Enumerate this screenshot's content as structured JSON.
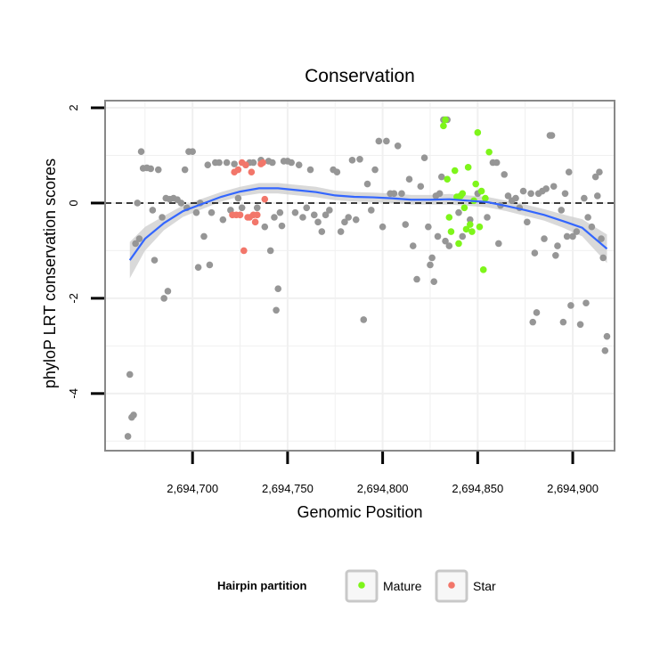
{
  "chart_data": {
    "type": "scatter",
    "title": "Conservation",
    "xlabel": "Genomic Position",
    "ylabel": "phyloP LRT conservation scores",
    "xlim": [
      2694654,
      2694922
    ],
    "ylim": [
      -5.2,
      2.15
    ],
    "x_ticks": [
      2694700,
      2694750,
      2694800,
      2694850,
      2694900
    ],
    "x_tick_labels": [
      "2,694,700",
      "2,694,750",
      "2,694,800",
      "2,694,850",
      "2,694,900"
    ],
    "y_ticks": [
      -4,
      -2,
      0,
      2
    ],
    "y_tick_labels": [
      "-4",
      "-2",
      "0",
      "2"
    ],
    "reference_line_y": 0,
    "colors": {
      "other": "#969696",
      "mature": "#7ef51a",
      "star": "#f2766a",
      "smooth": "#3366ff",
      "band": "#cccccc",
      "grid": "#f0f0f0",
      "frame": "#888888"
    },
    "legend": {
      "title": "Hairpin partition",
      "items": [
        {
          "label": "Mature",
          "color": "#7ef51a"
        },
        {
          "label": "Star",
          "color": "#f2766a"
        }
      ]
    },
    "series": [
      {
        "name": "Other",
        "points": [
          [
            2694666,
            -4.9
          ],
          [
            2694667,
            -3.6
          ],
          [
            2694668,
            -4.5
          ],
          [
            2694669,
            -4.45
          ],
          [
            2694670,
            -0.85
          ],
          [
            2694671,
            0.0
          ],
          [
            2694672,
            -0.75
          ],
          [
            2694673,
            1.08
          ],
          [
            2694674,
            0.73
          ],
          [
            2694676,
            0.74
          ],
          [
            2694678,
            0.72
          ],
          [
            2694679,
            -0.15
          ],
          [
            2694680,
            -1.2
          ],
          [
            2694682,
            0.7
          ],
          [
            2694684,
            -0.3
          ],
          [
            2694685,
            -2.0
          ],
          [
            2694686,
            0.1
          ],
          [
            2694687,
            -1.85
          ],
          [
            2694688,
            0.08
          ],
          [
            2694690,
            0.1
          ],
          [
            2694692,
            0.07
          ],
          [
            2694694,
            0.0
          ],
          [
            2694696,
            0.7
          ],
          [
            2694697,
            -0.1
          ],
          [
            2694698,
            1.08
          ],
          [
            2694700,
            1.08
          ],
          [
            2694702,
            -0.2
          ],
          [
            2694703,
            -1.35
          ],
          [
            2694704,
            0.0
          ],
          [
            2694706,
            -0.7
          ],
          [
            2694708,
            0.8
          ],
          [
            2694709,
            -1.3
          ],
          [
            2694710,
            -0.2
          ],
          [
            2694712,
            0.85
          ],
          [
            2694714,
            0.85
          ],
          [
            2694716,
            -0.35
          ],
          [
            2694718,
            0.85
          ],
          [
            2694720,
            -0.15
          ],
          [
            2694722,
            0.82
          ],
          [
            2694724,
            0.1
          ],
          [
            2694726,
            -0.1
          ],
          [
            2694728,
            0.8
          ],
          [
            2694730,
            0.85
          ],
          [
            2694732,
            0.85
          ],
          [
            2694734,
            -0.1
          ],
          [
            2694736,
            0.9
          ],
          [
            2694738,
            -0.5
          ],
          [
            2694740,
            0.88
          ],
          [
            2694741,
            -1.0
          ],
          [
            2694742,
            0.85
          ],
          [
            2694743,
            -0.3
          ],
          [
            2694744,
            -2.25
          ],
          [
            2694745,
            -1.8
          ],
          [
            2694746,
            -0.2
          ],
          [
            2694747,
            -0.48
          ],
          [
            2694748,
            0.88
          ],
          [
            2694750,
            0.88
          ],
          [
            2694752,
            0.85
          ],
          [
            2694754,
            -0.2
          ],
          [
            2694756,
            0.8
          ],
          [
            2694758,
            -0.3
          ],
          [
            2694760,
            -0.1
          ],
          [
            2694762,
            0.7
          ],
          [
            2694764,
            -0.25
          ],
          [
            2694766,
            -0.4
          ],
          [
            2694768,
            -0.6
          ],
          [
            2694770,
            -0.25
          ],
          [
            2694772,
            -0.15
          ],
          [
            2694774,
            0.7
          ],
          [
            2694776,
            0.65
          ],
          [
            2694778,
            -0.6
          ],
          [
            2694780,
            -0.4
          ],
          [
            2694782,
            -0.3
          ],
          [
            2694784,
            0.9
          ],
          [
            2694786,
            -0.35
          ],
          [
            2694788,
            0.92
          ],
          [
            2694790,
            -2.45
          ],
          [
            2694792,
            0.4
          ],
          [
            2694794,
            -0.15
          ],
          [
            2694796,
            0.7
          ],
          [
            2694798,
            1.3
          ],
          [
            2694800,
            -0.5
          ],
          [
            2694802,
            1.3
          ],
          [
            2694804,
            0.2
          ],
          [
            2694806,
            0.2
          ],
          [
            2694808,
            1.2
          ],
          [
            2694810,
            0.2
          ],
          [
            2694812,
            -0.45
          ],
          [
            2694814,
            0.5
          ],
          [
            2694816,
            -0.9
          ],
          [
            2694818,
            -1.6
          ],
          [
            2694820,
            0.35
          ],
          [
            2694822,
            0.95
          ],
          [
            2694824,
            -0.5
          ],
          [
            2694825,
            -1.3
          ],
          [
            2694826,
            -1.15
          ],
          [
            2694827,
            -1.65
          ],
          [
            2694828,
            0.15
          ],
          [
            2694829,
            -0.7
          ],
          [
            2694830,
            0.2
          ],
          [
            2694831,
            0.55
          ],
          [
            2694832,
            1.75
          ],
          [
            2694833,
            -0.8
          ],
          [
            2694834,
            1.75
          ],
          [
            2694835,
            -0.9
          ],
          [
            2694840,
            -0.2
          ],
          [
            2694842,
            -0.7
          ],
          [
            2694846,
            -0.35
          ],
          [
            2694850,
            0.2
          ],
          [
            2694855,
            -0.3
          ],
          [
            2694858,
            0.85
          ],
          [
            2694860,
            0.85
          ],
          [
            2694861,
            -0.85
          ],
          [
            2694862,
            -0.05
          ],
          [
            2694864,
            0.6
          ],
          [
            2694866,
            0.15
          ],
          [
            2694868,
            0.05
          ],
          [
            2694870,
            0.1
          ],
          [
            2694872,
            -0.1
          ],
          [
            2694874,
            0.25
          ],
          [
            2694876,
            -0.4
          ],
          [
            2694878,
            0.2
          ],
          [
            2694879,
            -2.5
          ],
          [
            2694880,
            -1.05
          ],
          [
            2694881,
            -2.3
          ],
          [
            2694882,
            0.2
          ],
          [
            2694884,
            0.25
          ],
          [
            2694885,
            -0.75
          ],
          [
            2694886,
            0.3
          ],
          [
            2694888,
            1.42
          ],
          [
            2694889,
            1.42
          ],
          [
            2694890,
            0.35
          ],
          [
            2694891,
            -1.1
          ],
          [
            2694892,
            -0.9
          ],
          [
            2694894,
            -0.15
          ],
          [
            2694895,
            -2.5
          ],
          [
            2694896,
            0.2
          ],
          [
            2694897,
            -0.7
          ],
          [
            2694898,
            0.65
          ],
          [
            2694899,
            -2.15
          ],
          [
            2694900,
            -0.7
          ],
          [
            2694902,
            -0.6
          ],
          [
            2694904,
            -2.55
          ],
          [
            2694906,
            0.1
          ],
          [
            2694907,
            -2.1
          ],
          [
            2694908,
            -0.3
          ],
          [
            2694910,
            -0.5
          ],
          [
            2694912,
            0.55
          ],
          [
            2694913,
            0.15
          ],
          [
            2694914,
            0.65
          ],
          [
            2694915,
            -0.75
          ],
          [
            2694916,
            -1.15
          ],
          [
            2694917,
            -3.1
          ],
          [
            2694918,
            -2.8
          ]
        ]
      },
      {
        "name": "Mature",
        "points": [
          [
            2694832,
            1.62
          ],
          [
            2694833,
            1.75
          ],
          [
            2694834,
            0.5
          ],
          [
            2694835,
            -0.3
          ],
          [
            2694836,
            -0.6
          ],
          [
            2694838,
            0.68
          ],
          [
            2694839,
            0.13
          ],
          [
            2694840,
            -0.85
          ],
          [
            2694841,
            0.15
          ],
          [
            2694842,
            0.2
          ],
          [
            2694843,
            -0.1
          ],
          [
            2694844,
            -0.55
          ],
          [
            2694845,
            0.75
          ],
          [
            2694846,
            -0.45
          ],
          [
            2694847,
            -0.6
          ],
          [
            2694848,
            0.05
          ],
          [
            2694849,
            0.4
          ],
          [
            2694850,
            1.48
          ],
          [
            2694851,
            -0.5
          ],
          [
            2694852,
            0.25
          ],
          [
            2694853,
            -1.4
          ],
          [
            2694854,
            0.1
          ],
          [
            2694856,
            1.07
          ]
        ]
      },
      {
        "name": "Star",
        "points": [
          [
            2694721,
            -0.25
          ],
          [
            2694722,
            0.65
          ],
          [
            2694723,
            -0.25
          ],
          [
            2694724,
            0.7
          ],
          [
            2694725,
            -0.25
          ],
          [
            2694726,
            0.85
          ],
          [
            2694727,
            -1.0
          ],
          [
            2694728,
            0.8
          ],
          [
            2694729,
            -0.3
          ],
          [
            2694730,
            -0.3
          ],
          [
            2694731,
            0.65
          ],
          [
            2694732,
            -0.25
          ],
          [
            2694733,
            -0.4
          ],
          [
            2694734,
            -0.25
          ],
          [
            2694736,
            0.82
          ],
          [
            2694737,
            0.85
          ],
          [
            2694738,
            0.08
          ]
        ]
      }
    ],
    "smooth_line": {
      "x": [
        2694667,
        2694675,
        2694685,
        2694695,
        2694705,
        2694715,
        2694725,
        2694735,
        2694745,
        2694755,
        2694765,
        2694775,
        2694785,
        2694795,
        2694805,
        2694815,
        2694825,
        2694835,
        2694845,
        2694855,
        2694865,
        2694875,
        2694885,
        2694895,
        2694905,
        2694918
      ],
      "y": [
        -1.2,
        -0.75,
        -0.42,
        -0.17,
        -0.02,
        0.13,
        0.24,
        0.31,
        0.31,
        0.27,
        0.23,
        0.16,
        0.13,
        0.12,
        0.1,
        0.07,
        0.07,
        0.08,
        0.05,
        0.02,
        -0.06,
        -0.15,
        -0.25,
        -0.38,
        -0.52,
        -0.96
      ],
      "se": [
        0.38,
        0.25,
        0.15,
        0.12,
        0.11,
        0.1,
        0.1,
        0.11,
        0.11,
        0.11,
        0.11,
        0.1,
        0.1,
        0.1,
        0.1,
        0.1,
        0.1,
        0.11,
        0.11,
        0.11,
        0.11,
        0.12,
        0.12,
        0.14,
        0.18,
        0.3
      ]
    }
  }
}
